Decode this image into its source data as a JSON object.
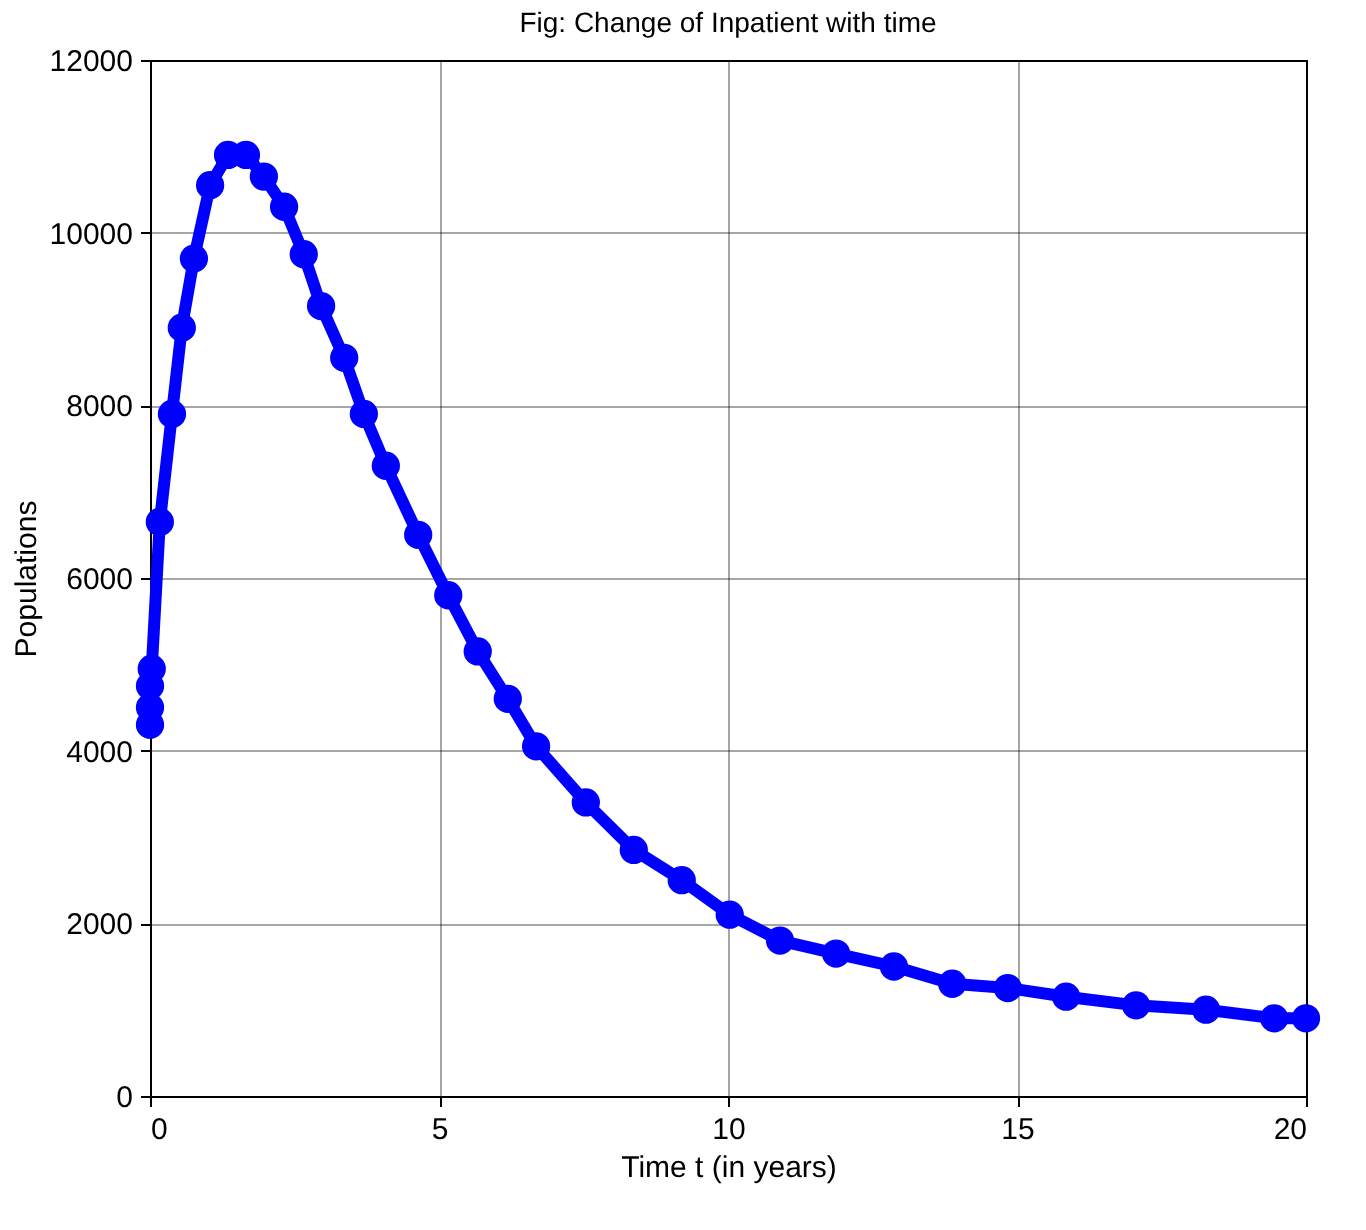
{
  "chart_data": {
    "type": "line",
    "title": "Fig: Change of Inpatient with time",
    "xlabel": "Time t (in years)",
    "ylabel": "Populations",
    "x": [
      0,
      0,
      0,
      0.03,
      0.17,
      0.38,
      0.55,
      0.76,
      1.04,
      1.35,
      1.66,
      1.97,
      2.32,
      2.66,
      2.96,
      3.36,
      3.7,
      4.08,
      4.64,
      5.16,
      5.67,
      6.19,
      6.68,
      7.54,
      8.37,
      9.2,
      10.03,
      10.9,
      11.87,
      12.87,
      13.88,
      14.84,
      15.85,
      17.06,
      18.27,
      19.45,
      20
    ],
    "series": [
      {
        "color": "#0000ff",
        "values": [
          4300,
          4500,
          4750,
          4950,
          6650,
          7900,
          8900,
          9700,
          10550,
          10900,
          10900,
          10650,
          10300,
          9750,
          9150,
          8550,
          7900,
          7300,
          6500,
          5800,
          5150,
          4600,
          4050,
          3400,
          2850,
          2500,
          2100,
          1800,
          1650,
          1500,
          1300,
          1250,
          1150,
          1050,
          1000,
          900,
          900
        ]
      }
    ],
    "xlim": [
      0,
      20
    ],
    "xticks": [
      0,
      5,
      10,
      15,
      20
    ],
    "ylim": [
      0,
      12000
    ],
    "yticks": [
      0,
      2000,
      4000,
      6000,
      8000,
      10000,
      12000
    ],
    "grid": true,
    "marker": "circle",
    "line_style": "solid"
  }
}
